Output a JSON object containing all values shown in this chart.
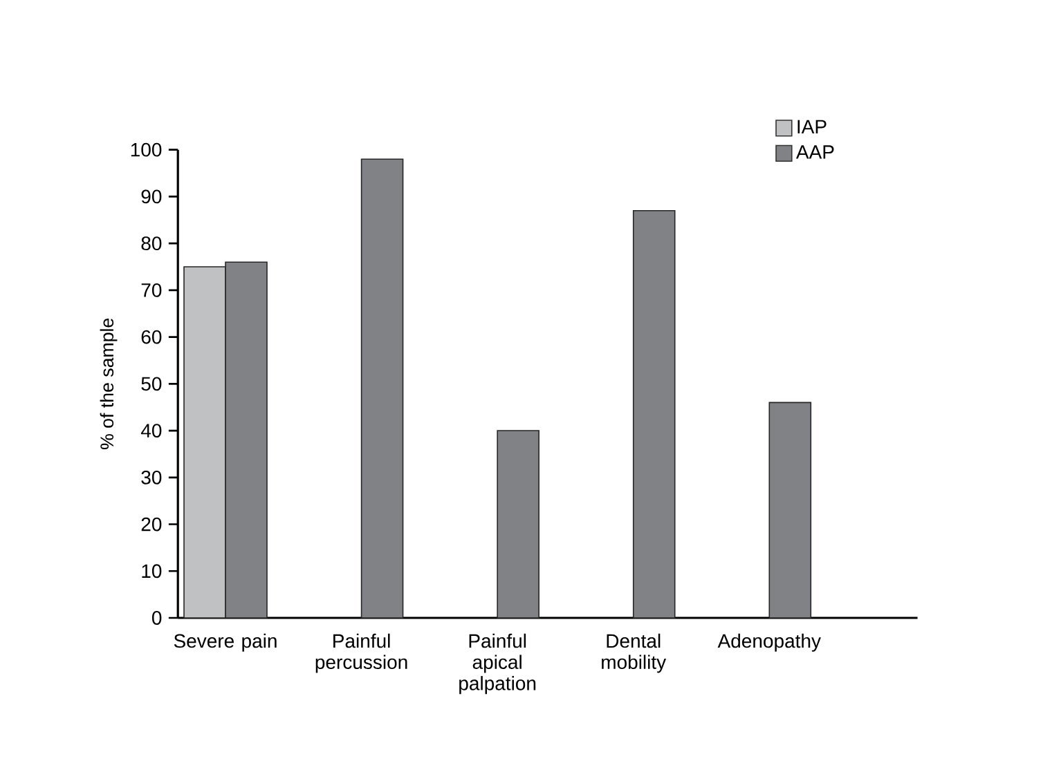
{
  "chart_data": {
    "type": "bar",
    "ylabel": "% of the sample",
    "categories": [
      "Severe pain",
      "Painful percussion",
      "Painful apical palpation",
      "Dental mobility",
      "Adenopathy"
    ],
    "series": [
      {
        "name": "IAP",
        "color": "#c0c1c3",
        "values": [
          75,
          null,
          null,
          null,
          null
        ]
      },
      {
        "name": "AAP",
        "color": "#808285",
        "values": [
          76,
          98,
          40,
          87,
          46
        ]
      }
    ],
    "ylim": [
      0,
      100
    ],
    "yticks": [
      0,
      10,
      20,
      30,
      40,
      50,
      60,
      70,
      80,
      90,
      100
    ],
    "grid": false,
    "legend": "top right"
  }
}
